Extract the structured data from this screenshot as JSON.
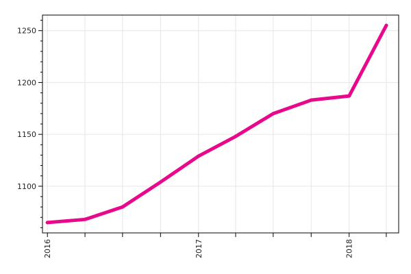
{
  "chart_data": {
    "type": "line",
    "title": "",
    "xlabel": "",
    "ylabel": "",
    "x": [
      "2016-01-01",
      "2016-04-01",
      "2016-07-01",
      "2016-10-01",
      "2017-01-01",
      "2017-04-01",
      "2017-07-01",
      "2017-10-01",
      "2018-01-01",
      "2018-04-01"
    ],
    "x_ticks": [
      {
        "date": "2016-01-01",
        "label": "2016"
      },
      {
        "date": "2017-01-01",
        "label": "2017"
      },
      {
        "date": "2018-01-01",
        "label": "2018"
      }
    ],
    "series": [
      {
        "values": [
          1065,
          1068,
          1080,
          1104,
          1129,
          1148,
          1170,
          1183,
          1187,
          1255
        ],
        "color": "#e8088c"
      }
    ],
    "y_ticks": [
      1100,
      1150,
      1200,
      1250
    ],
    "ylim": [
      1055,
      1265
    ],
    "xlim": [
      "2015-12-20",
      "2018-05-01"
    ],
    "grid": true,
    "legend": "none"
  }
}
